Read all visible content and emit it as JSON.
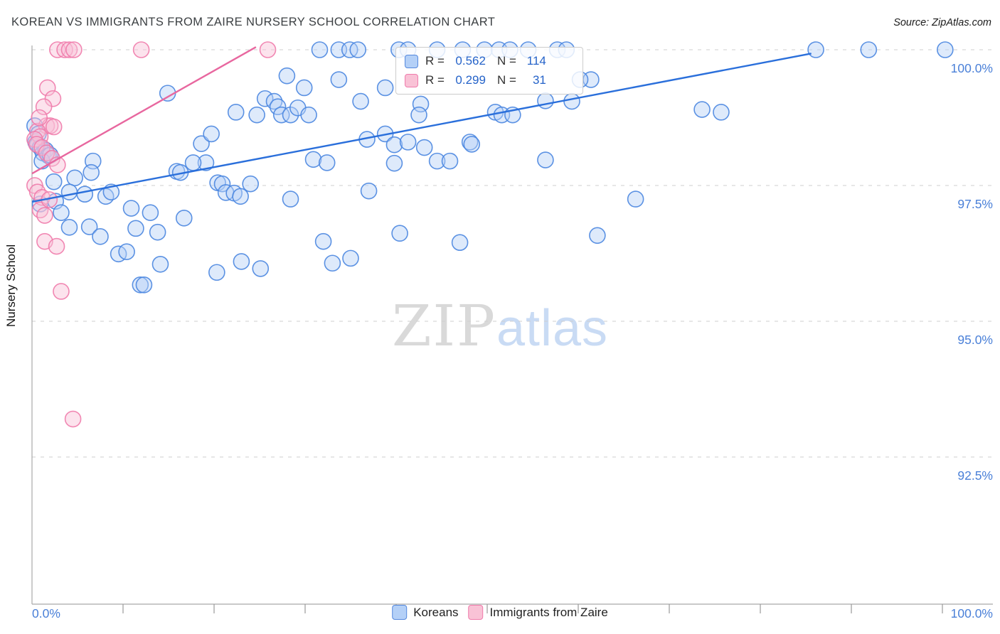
{
  "header": {
    "title": "KOREAN VS IMMIGRANTS FROM ZAIRE NURSERY SCHOOL CORRELATION CHART",
    "source": "Source: ZipAtlas.com"
  },
  "watermark": {
    "zip": "ZIP",
    "atlas": "atlas"
  },
  "stats_box": {
    "rows": [
      {
        "series": "Koreans",
        "r_label": "R =",
        "r_value": "0.562",
        "n_label": "N =",
        "n_value": "114"
      },
      {
        "series": "Immigrants from Zaire",
        "r_label": "R =",
        "r_value": "0.299",
        "n_label": "N =",
        "n_value": "31"
      }
    ]
  },
  "legend": {
    "items": [
      {
        "label": "Koreans"
      },
      {
        "label": "Immigrants from Zaire"
      }
    ]
  },
  "axis": {
    "x_min": "0.0%",
    "x_max": "100.0%"
  },
  "chart_data": {
    "type": "scatter",
    "title": "KOREAN VS IMMIGRANTS FROM ZAIRE NURSERY SCHOOL CORRELATION CHART",
    "xlabel": "",
    "ylabel": "Nursery School",
    "xlim": [
      0,
      105.5
    ],
    "ylim": [
      89.8,
      100.1
    ],
    "grid": "horizontal-dashed",
    "x_tick_positions": [
      10,
      20,
      30,
      40,
      50,
      60,
      70,
      80,
      90,
      100
    ],
    "y_gridlines": [
      100,
      97.5,
      95,
      92.5
    ],
    "y_tick_labels": [
      "100.0%",
      "97.5%",
      "95.0%",
      "92.5%"
    ],
    "legend_position": "bottom-center",
    "series": [
      {
        "name": "Koreans",
        "R": 0.562,
        "N": 114,
        "stroke": "#4a86e0",
        "fill": "#b5d0f7",
        "trend_color": "#2a6fdb",
        "trend": [
          [
            0,
            97.2
          ],
          [
            85.6,
            99.93
          ]
        ],
        "points": [
          [
            31.6,
            100
          ],
          [
            33.7,
            100
          ],
          [
            34.9,
            100
          ],
          [
            35.8,
            100
          ],
          [
            40.3,
            100
          ],
          [
            41.3,
            100
          ],
          [
            44.5,
            100
          ],
          [
            47.3,
            100
          ],
          [
            49.7,
            100
          ],
          [
            51.3,
            100
          ],
          [
            52.5,
            100
          ],
          [
            54.5,
            100
          ],
          [
            57.7,
            100
          ],
          [
            58.7,
            100
          ],
          [
            86.1,
            100
          ],
          [
            91.9,
            100
          ],
          [
            100.3,
            100
          ],
          [
            28.0,
            99.52
          ],
          [
            29.9,
            99.3
          ],
          [
            33.7,
            99.45
          ],
          [
            38.8,
            99.3
          ],
          [
            36.1,
            99.05
          ],
          [
            42.7,
            99.0
          ],
          [
            42.5,
            98.8
          ],
          [
            61.4,
            99.45
          ],
          [
            60.2,
            99.45
          ],
          [
            59.3,
            99.05
          ],
          [
            56.4,
            99.06
          ],
          [
            73.6,
            98.9
          ],
          [
            75.7,
            98.85
          ],
          [
            14.9,
            99.2
          ],
          [
            22.4,
            98.85
          ],
          [
            24.7,
            98.8
          ],
          [
            25.6,
            99.1
          ],
          [
            26.6,
            99.05
          ],
          [
            27.0,
            98.95
          ],
          [
            27.4,
            98.8
          ],
          [
            28.4,
            98.8
          ],
          [
            29.2,
            98.93
          ],
          [
            30.4,
            98.8
          ],
          [
            50.9,
            98.85
          ],
          [
            51.6,
            98.8
          ],
          [
            52.8,
            98.8
          ],
          [
            38.8,
            98.45
          ],
          [
            39.8,
            98.25
          ],
          [
            43.1,
            98.2
          ],
          [
            48.1,
            98.3
          ],
          [
            48.3,
            98.26
          ],
          [
            44.5,
            97.95
          ],
          [
            45.9,
            97.95
          ],
          [
            36.8,
            98.35
          ],
          [
            30.9,
            97.98
          ],
          [
            32.4,
            97.92
          ],
          [
            18.6,
            98.27
          ],
          [
            19.1,
            97.92
          ],
          [
            19.7,
            98.45
          ],
          [
            41.3,
            98.3
          ],
          [
            56.4,
            97.97
          ],
          [
            0.3,
            98.6
          ],
          [
            0.4,
            98.3
          ],
          [
            0.6,
            98.25
          ],
          [
            0.9,
            98.2
          ],
          [
            1.2,
            98.1
          ],
          [
            1.5,
            98.15
          ],
          [
            1.8,
            98.05
          ],
          [
            1.1,
            97.95
          ],
          [
            2.0,
            98.06
          ],
          [
            0.7,
            98.45
          ],
          [
            15.9,
            97.76
          ],
          [
            16.3,
            97.74
          ],
          [
            17.7,
            97.92
          ],
          [
            20.4,
            97.55
          ],
          [
            20.9,
            97.53
          ],
          [
            21.3,
            97.37
          ],
          [
            22.2,
            97.36
          ],
          [
            22.9,
            97.3
          ],
          [
            24.0,
            97.53
          ],
          [
            28.4,
            97.25
          ],
          [
            37.0,
            97.4
          ],
          [
            39.8,
            97.91
          ],
          [
            66.3,
            97.25
          ],
          [
            6.7,
            97.95
          ],
          [
            6.5,
            97.74
          ],
          [
            4.7,
            97.64
          ],
          [
            4.1,
            97.38
          ],
          [
            2.4,
            97.57
          ],
          [
            0.9,
            97.16
          ],
          [
            2.6,
            97.21
          ],
          [
            5.8,
            97.34
          ],
          [
            8.1,
            97.3
          ],
          [
            8.7,
            97.38
          ],
          [
            4.1,
            96.73
          ],
          [
            6.3,
            96.74
          ],
          [
            7.5,
            96.56
          ],
          [
            10.9,
            97.08
          ],
          [
            11.4,
            96.71
          ],
          [
            13.0,
            97.0
          ],
          [
            13.8,
            96.64
          ],
          [
            9.5,
            96.24
          ],
          [
            10.4,
            96.28
          ],
          [
            14.1,
            96.05
          ],
          [
            23.0,
            96.1
          ],
          [
            32.0,
            96.47
          ],
          [
            40.4,
            96.62
          ],
          [
            47.0,
            96.45
          ],
          [
            62.1,
            96.58
          ],
          [
            11.9,
            95.67
          ],
          [
            12.3,
            95.67
          ],
          [
            20.3,
            95.9
          ],
          [
            25.1,
            95.97
          ],
          [
            33.0,
            96.07
          ],
          [
            35.0,
            96.16
          ],
          [
            3.2,
            97.0
          ],
          [
            16.7,
            96.9
          ]
        ]
      },
      {
        "name": "Immigrants from Zaire",
        "R": 0.299,
        "N": 31,
        "stroke": "#ef7bab",
        "fill": "#f9c2d6",
        "trend_color": "#e8679f",
        "trend": [
          [
            0,
            97.72
          ],
          [
            24.6,
            100.05
          ]
        ],
        "points": [
          [
            2.8,
            100
          ],
          [
            3.6,
            100
          ],
          [
            4.1,
            100
          ],
          [
            4.6,
            100
          ],
          [
            12.0,
            100
          ],
          [
            25.9,
            100
          ],
          [
            1.7,
            99.3
          ],
          [
            2.3,
            99.1
          ],
          [
            1.3,
            98.95
          ],
          [
            1.6,
            98.6
          ],
          [
            2.0,
            98.6
          ],
          [
            2.4,
            98.58
          ],
          [
            0.6,
            98.5
          ],
          [
            0.9,
            98.4
          ],
          [
            0.3,
            98.35
          ],
          [
            0.5,
            98.26
          ],
          [
            1.1,
            98.2
          ],
          [
            1.6,
            98.1
          ],
          [
            2.2,
            98.0
          ],
          [
            2.8,
            97.88
          ],
          [
            0.3,
            97.5
          ],
          [
            0.6,
            97.38
          ],
          [
            1.1,
            97.28
          ],
          [
            0.9,
            97.05
          ],
          [
            1.9,
            97.24
          ],
          [
            1.4,
            96.95
          ],
          [
            1.4,
            96.47
          ],
          [
            2.7,
            96.38
          ],
          [
            3.2,
            95.55
          ],
          [
            4.5,
            93.2
          ],
          [
            0.8,
            98.75
          ]
        ]
      }
    ]
  }
}
